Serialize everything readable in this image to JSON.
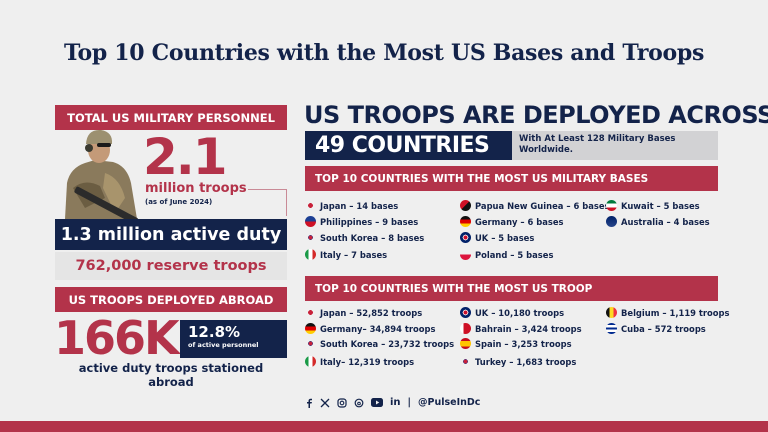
{
  "title": "Top 10 Countries with the Most US Bases and Troops",
  "left": {
    "personnel_header": "TOTAL US MILITARY PERSONNEL",
    "total_value": "2.1",
    "total_unit": "million troops",
    "total_note": "(as of June 2024)",
    "active_duty": "1.3 million active duty",
    "reserve": "762,000 reserve troops",
    "abroad_header": "US TROOPS DEPLOYED ABROAD",
    "abroad_value": "166K",
    "abroad_pct": "12.8%",
    "abroad_pct_label": "of active personnel",
    "abroad_caption": "active duty troops stationed abroad"
  },
  "right": {
    "headline": "US TROOPS ARE DEPLOYED ACROSS",
    "countries": "49 COUNTRIES",
    "bases_note": "With At Least 128 Military Bases Worldwide.",
    "bases_header": "TOP 10 COUNTRIES WITH THE MOST US MILITARY BASES",
    "bases": [
      {
        "label": "Japan – 14 bases",
        "flag": "japan"
      },
      {
        "label": "Philippines – 9 bases",
        "flag": "philippines"
      },
      {
        "label": "South Korea – 8 bases",
        "flag": "south-korea"
      },
      {
        "label": "Italy – 7 bases",
        "flag": "italy"
      },
      {
        "label": "Papua New Guinea – 6 bases",
        "flag": "papua-new-guinea"
      },
      {
        "label": "Germany – 6 bases",
        "flag": "germany"
      },
      {
        "label": "UK – 5 bases",
        "flag": "uk"
      },
      {
        "label": "Poland – 5 bases",
        "flag": "poland"
      },
      {
        "label": "Kuwait – 5 bases",
        "flag": "kuwait"
      },
      {
        "label": "Australia – 4 bases",
        "flag": "australia"
      }
    ],
    "troops_header": "TOP 10 COUNTRIES WITH THE MOST US TROOP",
    "troops": [
      {
        "label": "Japan – 52,852 troops",
        "flag": "japan"
      },
      {
        "label": "Germany– 34,894 troops",
        "flag": "germany"
      },
      {
        "label": "South Korea – 23,732 troops",
        "flag": "south-korea"
      },
      {
        "label": "Italy– 12,319 troops",
        "flag": "italy"
      },
      {
        "label": "UK – 10,180 troops",
        "flag": "uk"
      },
      {
        "label": "Bahrain – 3,424 troops",
        "flag": "bahrain"
      },
      {
        "label": "Spain – 3,253 troops",
        "flag": "spain"
      },
      {
        "label": "Turkey – 1,683 troops",
        "flag": "south-korea"
      },
      {
        "label": "Belgium – 1,119 troops",
        "flag": "belgium"
      },
      {
        "label": "Cuba – 572 troops",
        "flag": "cuba"
      }
    ]
  },
  "footer": {
    "icons": [
      "facebook-icon",
      "x-icon",
      "instagram-icon",
      "threads-icon",
      "youtube-icon",
      "linkedin-icon"
    ],
    "separator": "|",
    "handle": "@PulseInDc"
  },
  "colors": {
    "red": "#b3334a",
    "navy": "#13234a",
    "background": "#efefef",
    "gray": "#d2d2d4"
  }
}
